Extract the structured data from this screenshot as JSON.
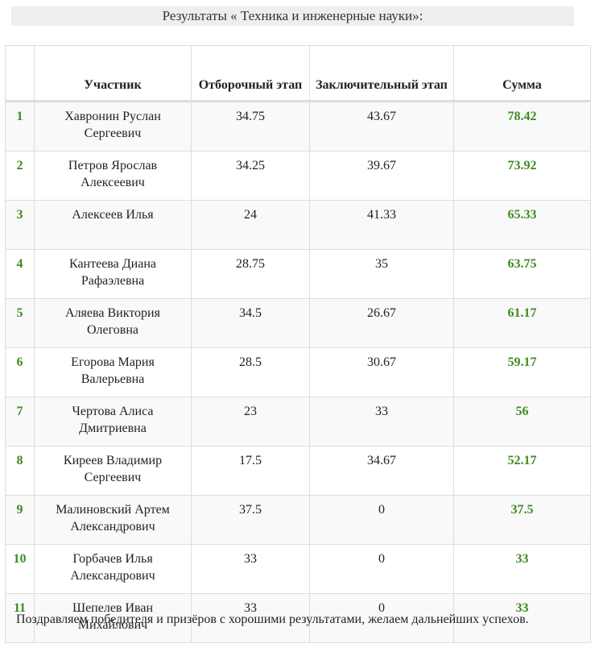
{
  "title": "Результаты « Техника и инженерные науки»:",
  "table": {
    "headers": {
      "place": "",
      "participant": "Участник",
      "qualifying": "Отборочный этап",
      "final": "Заключительный этап",
      "total": "Сумма"
    },
    "rows": [
      {
        "place": "1",
        "name": "Хавронин Руслан Сергеевич",
        "qualifying": "34.75",
        "final": "43.67",
        "total": "78.42"
      },
      {
        "place": "2",
        "name": "Петров Ярослав Алексеевич",
        "qualifying": "34.25",
        "final": "39.67",
        "total": "73.92"
      },
      {
        "place": "3",
        "name": "Алексеев Илья",
        "qualifying": "24",
        "final": "41.33",
        "total": "65.33"
      },
      {
        "place": "4",
        "name": "Кантеева Диана Рафаэлевна",
        "qualifying": "28.75",
        "final": "35",
        "total": "63.75"
      },
      {
        "place": "5",
        "name": "Аляева Виктория Олеговна",
        "qualifying": "34.5",
        "final": "26.67",
        "total": "61.17"
      },
      {
        "place": "6",
        "name": "Егорова Мария Валерьевна",
        "qualifying": "28.5",
        "final": "30.67",
        "total": "59.17"
      },
      {
        "place": "7",
        "name": "Чертова Алиса Дмитриевна",
        "qualifying": "23",
        "final": "33",
        "total": "56"
      },
      {
        "place": "8",
        "name": "Киреев Владимир Сергеевич",
        "qualifying": "17.5",
        "final": "34.67",
        "total": "52.17"
      },
      {
        "place": "9",
        "name": "Малиновский Артем Александрович",
        "qualifying": "37.5",
        "final": "0",
        "total": "37.5"
      },
      {
        "place": "10",
        "name": "Горбачев Илья Александрович",
        "qualifying": "33",
        "final": "0",
        "total": "33"
      },
      {
        "place": "11",
        "name": "Шепелев Иван Михайлович",
        "qualifying": "33",
        "final": "0",
        "total": "33"
      }
    ]
  },
  "footer": "Поздравляем победителя и призёров с хорошими результатами, желаем дальнейших успехов.",
  "colors": {
    "accent_green": "#3d8b1f",
    "title_background": "#eeeeee",
    "border": "#dddddd"
  }
}
